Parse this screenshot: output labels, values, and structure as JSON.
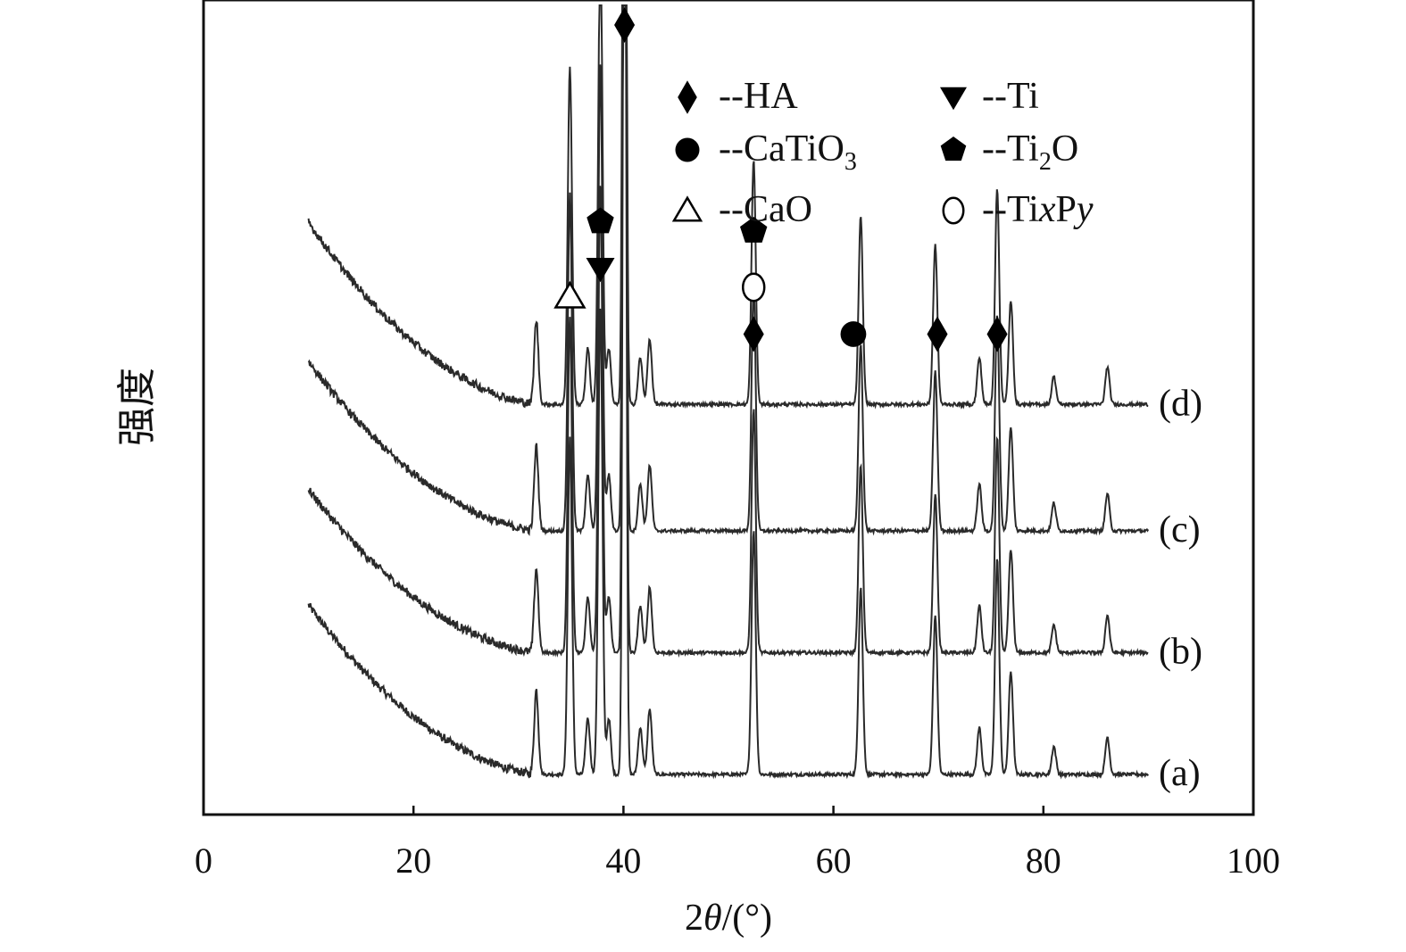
{
  "chart_data": {
    "type": "line",
    "title": "",
    "xlabel_prefix": "2",
    "xlabel_theta": "θ",
    "xlabel_suffix": "/(°)",
    "ylabel": "强度",
    "xlim": [
      0,
      100
    ],
    "xticks": [
      "0",
      "20",
      "40",
      "60",
      "80",
      "100"
    ],
    "grid": false,
    "legend": [
      {
        "symbol": "diamond",
        "prefix": "--",
        "text": "HA",
        "sub": "",
        "tail": "",
        "italic": false
      },
      {
        "symbol": "down-triangle",
        "prefix": "--",
        "text": "Ti",
        "sub": "",
        "tail": "",
        "italic": false
      },
      {
        "symbol": "filled-circle",
        "prefix": "--",
        "text": "CaTiO",
        "sub": "3",
        "tail": "",
        "italic": false
      },
      {
        "symbol": "pentagon",
        "prefix": "--",
        "text": "Ti",
        "sub": "2",
        "tail": "O",
        "italic": false
      },
      {
        "symbol": "open-triangle",
        "prefix": "--",
        "text": "CaO",
        "sub": "",
        "tail": "",
        "italic": false
      },
      {
        "symbol": "open-circle",
        "prefix": "--",
        "text": "TixPy",
        "sub": "",
        "tail": "",
        "italic": true
      }
    ],
    "peaks": [
      {
        "x": 31.7,
        "h": 0.9
      },
      {
        "x": 34.9,
        "h": 3.6
      },
      {
        "x": 36.6,
        "h": 0.6
      },
      {
        "x": 37.8,
        "h": 5.0
      },
      {
        "x": 38.6,
        "h": 0.6
      },
      {
        "x": 40.1,
        "h": 12.0
      },
      {
        "x": 41.6,
        "h": 0.5
      },
      {
        "x": 42.5,
        "h": 0.7
      },
      {
        "x": 52.4,
        "h": 2.6
      },
      {
        "x": 62.6,
        "h": 2.0
      },
      {
        "x": 69.7,
        "h": 1.7
      },
      {
        "x": 73.9,
        "h": 0.5
      },
      {
        "x": 75.6,
        "h": 2.3
      },
      {
        "x": 76.9,
        "h": 1.1
      },
      {
        "x": 81.0,
        "h": 0.3
      },
      {
        "x": 86.1,
        "h": 0.4
      }
    ],
    "series": [
      {
        "name": "(a)",
        "baseline": 0.0,
        "background": 2.7
      },
      {
        "name": "(b)",
        "baseline": 1.3,
        "background": 2.6
      },
      {
        "name": "(c)",
        "baseline": 2.6,
        "background": 2.7
      },
      {
        "name": "(d)",
        "baseline": 3.95,
        "background": 2.9
      }
    ],
    "markers": [
      {
        "phase": "CaO",
        "symbol": "open-triangle",
        "x": 34.9,
        "level": 5.1
      },
      {
        "phase": "Ti",
        "symbol": "down-triangle",
        "x": 37.8,
        "level": 5.4
      },
      {
        "phase": "Ti2O",
        "symbol": "pentagon",
        "x": 37.8,
        "level": 5.9
      },
      {
        "phase": "Ti",
        "symbol": "down-triangle",
        "x": 40.1,
        "level": 8.6
      },
      {
        "phase": "HA",
        "symbol": "diamond",
        "x": 40.1,
        "level": 8.0
      },
      {
        "phase": "HA",
        "symbol": "diamond",
        "x": 52.4,
        "level": 4.7
      },
      {
        "phase": "TixPy",
        "symbol": "open-circle",
        "x": 52.4,
        "level": 5.2
      },
      {
        "phase": "Ti2O",
        "symbol": "pentagon",
        "x": 52.4,
        "level": 5.8
      },
      {
        "phase": "CaTiO3",
        "symbol": "filled-circle",
        "x": 61.9,
        "level": 4.7
      },
      {
        "phase": "HA",
        "symbol": "diamond",
        "x": 69.9,
        "level": 4.7
      },
      {
        "phase": "HA",
        "symbol": "diamond",
        "x": 75.6,
        "level": 4.7
      }
    ]
  }
}
